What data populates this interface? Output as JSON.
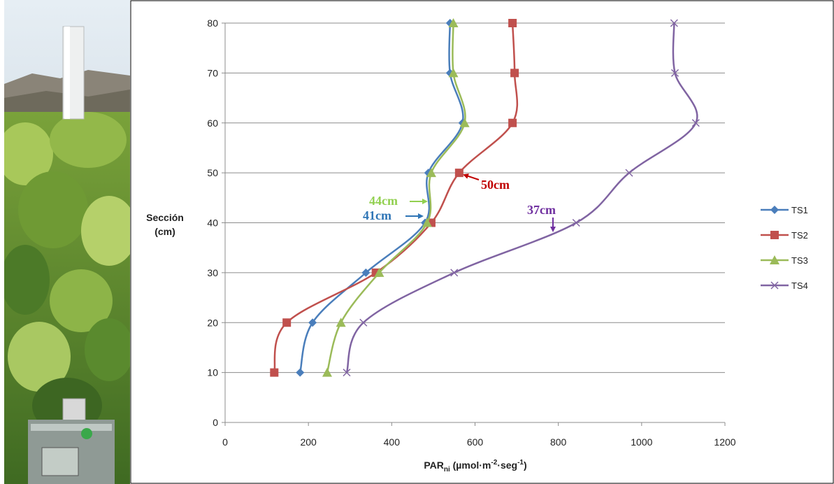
{
  "chart_data": {
    "type": "line",
    "title": "",
    "xlabel": "PAR",
    "xlabel_sub": "ni",
    "xlabel_units_prefix": " (µmol·m",
    "xlabel_sup1": "-2",
    "xlabel_mid": "·seg",
    "xlabel_sup2": "-1",
    "xlabel_end": ")",
    "ylabel_line1": "Sección",
    "ylabel_line2": "(cm)",
    "xlim": [
      0,
      1200
    ],
    "ylim": [
      0,
      80
    ],
    "xticks": [
      "0",
      "200",
      "400",
      "600",
      "800",
      "1000",
      "1200"
    ],
    "yticks": [
      "0",
      "10",
      "20",
      "30",
      "40",
      "50",
      "60",
      "70",
      "80"
    ],
    "grid": "horizontal",
    "legend_position": "right",
    "y": [
      10,
      20,
      30,
      40,
      50,
      60,
      70,
      80
    ],
    "series": [
      {
        "name": "TS1",
        "color": "#4a7ebb",
        "marker": "diamond",
        "x": [
          180,
          210,
          338,
          480,
          488,
          570,
          540,
          540
        ]
      },
      {
        "name": "TS2",
        "color": "#c0504d",
        "marker": "square",
        "x": [
          118,
          148,
          362,
          495,
          562,
          690,
          695,
          690
        ]
      },
      {
        "name": "TS3",
        "color": "#9bbb59",
        "marker": "triangle",
        "x": [
          245,
          278,
          370,
          485,
          495,
          575,
          548,
          548
        ]
      },
      {
        "name": "TS4",
        "color": "#8064a2",
        "marker": "x",
        "x": [
          292,
          332,
          550,
          843,
          970,
          1130,
          1080,
          1078
        ]
      }
    ],
    "annotations": [
      {
        "text": "50cm",
        "color": "#c00000"
      },
      {
        "text": "44cm",
        "color": "#92d050"
      },
      {
        "text": "41cm",
        "color": "#2e75b6"
      },
      {
        "text": "37cm",
        "color": "#7030a0"
      }
    ]
  }
}
